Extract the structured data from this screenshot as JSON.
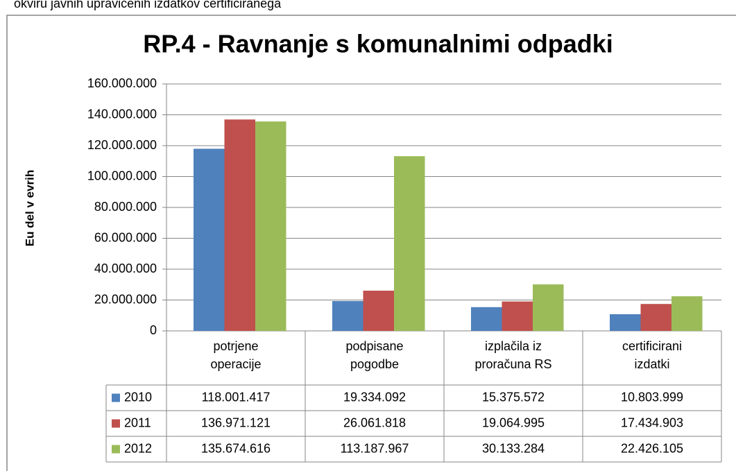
{
  "caption": "okviru javnih upravičenih izdatkov certificiranega",
  "chart_data": {
    "type": "bar",
    "title": "RP.4 - Ravnanje s komunalnimi odpadki",
    "y_label": "Eu del v evrih",
    "categories": [
      "potrjene operacije",
      "podpisane pogodbe",
      "izplačila iz proračuna RS",
      "certificirani izdatki"
    ],
    "series": [
      {
        "name": "2010",
        "color": "#4f81bd",
        "values": [
          118001417,
          19334092,
          15375572,
          10803999
        ],
        "value_labels": [
          "118.001.417",
          "19.334.092",
          "15.375.572",
          "10.803.999"
        ]
      },
      {
        "name": "2011",
        "color": "#c0504d",
        "values": [
          136971121,
          26061818,
          19064995,
          17434903
        ],
        "value_labels": [
          "136.971.121",
          "26.061.818",
          "19.064.995",
          "17.434.903"
        ]
      },
      {
        "name": "2012",
        "color": "#9bbb59",
        "values": [
          135674616,
          113187967,
          30133284,
          22426105
        ],
        "value_labels": [
          "135.674.616",
          "113.187.967",
          "30.133.284",
          "22.426.105"
        ]
      }
    ],
    "ylim": [
      0,
      160000000
    ],
    "yticks": [
      0,
      {
        "value": 20000000,
        "label": "20.000.000"
      },
      {
        "value": 40000000,
        "label": "40.000.000"
      },
      {
        "value": 60000000,
        "label": "60.000.000"
      },
      {
        "value": 80000000,
        "label": "80.000.000"
      },
      {
        "value": 100000000,
        "label": "100.000.000"
      },
      {
        "value": 120000000,
        "label": "120.000.000"
      },
      {
        "value": 140000000,
        "label": "140.000.000"
      },
      {
        "value": 160000000,
        "label": "160.000.000"
      }
    ],
    "grid": true
  }
}
